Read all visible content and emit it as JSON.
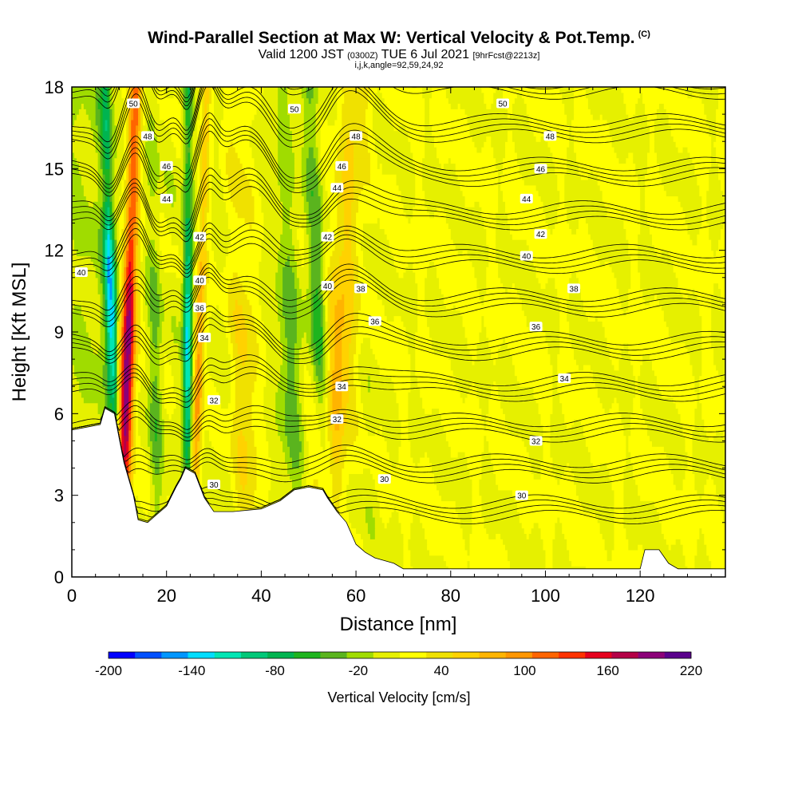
{
  "header": {
    "title_main": "Wind-Parallel Section at Max W: Vertical Velocity & Pot.Temp.",
    "title_copyright": "(C)",
    "valid_prefix": "Valid 1200 JST",
    "valid_utc": "(0300Z)",
    "valid_date": "TUE 6 Jul 2021",
    "forecast_info": "[9hrFcst@2213z]",
    "indices": "i,j,k,angle=92,59,24,92"
  },
  "chart_data": {
    "type": "heatmap",
    "title": "Wind-Parallel Section at Max W: Vertical Velocity & Pot.Temp.",
    "xlabel": "Distance [nm]",
    "ylabel": "Height [Kft MSL]",
    "xlim": [
      0,
      138
    ],
    "ylim": [
      0,
      18
    ],
    "x_ticks": [
      "0",
      "20",
      "40",
      "60",
      "80",
      "100",
      "120"
    ],
    "x_tick_values": [
      0,
      20,
      40,
      60,
      80,
      100,
      120
    ],
    "y_ticks": [
      "0",
      "3",
      "6",
      "9",
      "12",
      "15",
      "18"
    ],
    "y_tick_values": [
      0,
      3,
      6,
      9,
      12,
      15,
      18
    ],
    "colorbar": {
      "label": "Vertical Velocity [cm/s]",
      "min": -200,
      "max": 220,
      "tick_labels": [
        "-200",
        "-140",
        "-80",
        "-20",
        "40",
        "100",
        "160",
        "220"
      ],
      "tick_values": [
        -200,
        -140,
        -80,
        -20,
        40,
        100,
        160,
        220
      ],
      "colors": [
        "#0000ff",
        "#0050ff",
        "#0096ff",
        "#00ddff",
        "#00e6b4",
        "#00c878",
        "#00b450",
        "#1eb41e",
        "#5ab41e",
        "#a0dc00",
        "#e6f000",
        "#ffff00",
        "#f0e100",
        "#ffd200",
        "#ffb400",
        "#ff9600",
        "#ff6400",
        "#ff3200",
        "#e6001e",
        "#b40046",
        "#8c0078",
        "#5a008c"
      ]
    },
    "terrain": {
      "x": [
        0,
        6,
        7,
        9,
        10,
        11,
        13,
        14,
        16,
        18,
        20,
        22,
        23,
        24,
        26,
        28,
        30,
        34,
        40,
        44,
        47,
        50,
        53,
        54,
        56,
        58,
        60,
        62,
        64,
        66,
        68,
        70,
        80,
        90,
        100,
        110,
        120,
        121,
        124,
        126,
        128,
        138
      ],
      "h": [
        5.4,
        5.6,
        6.2,
        6.0,
        5.1,
        4.2,
        3.0,
        2.1,
        2.0,
        2.3,
        2.6,
        3.3,
        3.6,
        4.0,
        3.8,
        2.9,
        2.4,
        2.4,
        2.5,
        2.8,
        3.2,
        3.3,
        3.2,
        2.9,
        2.4,
        2.0,
        1.2,
        0.9,
        0.7,
        0.6,
        0.5,
        0.3,
        0.3,
        0.3,
        0.3,
        0.3,
        0.3,
        1.0,
        1.0,
        0.5,
        0.3,
        0.3
      ]
    },
    "updrafts": [
      {
        "x0": 11.0,
        "x1": 13.5,
        "width": 1.0,
        "value": 200
      },
      {
        "x0": 26.0,
        "x1": 28.5,
        "width": 0.8,
        "value": 90
      },
      {
        "x0": 53.5,
        "x1": 60.0,
        "width": 2.5,
        "value": 80
      },
      {
        "x0": 37.0,
        "x1": 35.0,
        "width": 2.0,
        "value": 45
      }
    ],
    "downdrafts": [
      {
        "x0": 9.0,
        "x1": 7.0,
        "width": 0.9,
        "value": -150
      },
      {
        "x0": 24.5,
        "x1": 24.5,
        "width": 0.7,
        "value": -140
      },
      {
        "x0": 54.0,
        "x1": 50.0,
        "width": 1.4,
        "value": -80
      },
      {
        "x0": 18.0,
        "x1": 17.0,
        "width": 1.0,
        "value": -40
      },
      {
        "x0": 47.0,
        "x1": 44.0,
        "width": 1.6,
        "value": -45
      }
    ],
    "pot_temp_contours": {
      "levels": [
        30,
        32,
        34,
        36,
        38,
        40,
        42,
        44,
        46,
        48,
        50
      ],
      "labels": [
        {
          "text": "30",
          "x": 30,
          "y": 3.4
        },
        {
          "text": "30",
          "x": 66,
          "y": 3.6
        },
        {
          "text": "30",
          "x": 95,
          "y": 3.0
        },
        {
          "text": "32",
          "x": 30,
          "y": 6.5
        },
        {
          "text": "32",
          "x": 56,
          "y": 5.8
        },
        {
          "text": "32",
          "x": 98,
          "y": 5.0
        },
        {
          "text": "34",
          "x": 28,
          "y": 8.8
        },
        {
          "text": "34",
          "x": 57,
          "y": 7.0
        },
        {
          "text": "34",
          "x": 104,
          "y": 7.3
        },
        {
          "text": "36",
          "x": 27,
          "y": 9.9
        },
        {
          "text": "36",
          "x": 64,
          "y": 9.4
        },
        {
          "text": "36",
          "x": 98,
          "y": 9.2
        },
        {
          "text": "38",
          "x": 61,
          "y": 10.6
        },
        {
          "text": "38",
          "x": 106,
          "y": 10.6
        },
        {
          "text": "40",
          "x": 2,
          "y": 11.2
        },
        {
          "text": "40",
          "x": 27,
          "y": 10.9
        },
        {
          "text": "40",
          "x": 54,
          "y": 10.7
        },
        {
          "text": "40",
          "x": 96,
          "y": 11.8
        },
        {
          "text": "42",
          "x": 27,
          "y": 12.5
        },
        {
          "text": "42",
          "x": 54,
          "y": 12.5
        },
        {
          "text": "42",
          "x": 99,
          "y": 12.6
        },
        {
          "text": "44",
          "x": 20,
          "y": 13.9
        },
        {
          "text": "44",
          "x": 56,
          "y": 14.3
        },
        {
          "text": "44",
          "x": 96,
          "y": 13.9
        },
        {
          "text": "46",
          "x": 20,
          "y": 15.1
        },
        {
          "text": "46",
          "x": 57,
          "y": 15.1
        },
        {
          "text": "46",
          "x": 99,
          "y": 15.0
        },
        {
          "text": "48",
          "x": 16,
          "y": 16.2
        },
        {
          "text": "48",
          "x": 60,
          "y": 16.2
        },
        {
          "text": "48",
          "x": 101,
          "y": 16.2
        },
        {
          "text": "50",
          "x": 13,
          "y": 17.4
        },
        {
          "text": "50",
          "x": 47,
          "y": 17.2
        },
        {
          "text": "50",
          "x": 91,
          "y": 17.4
        }
      ]
    }
  }
}
